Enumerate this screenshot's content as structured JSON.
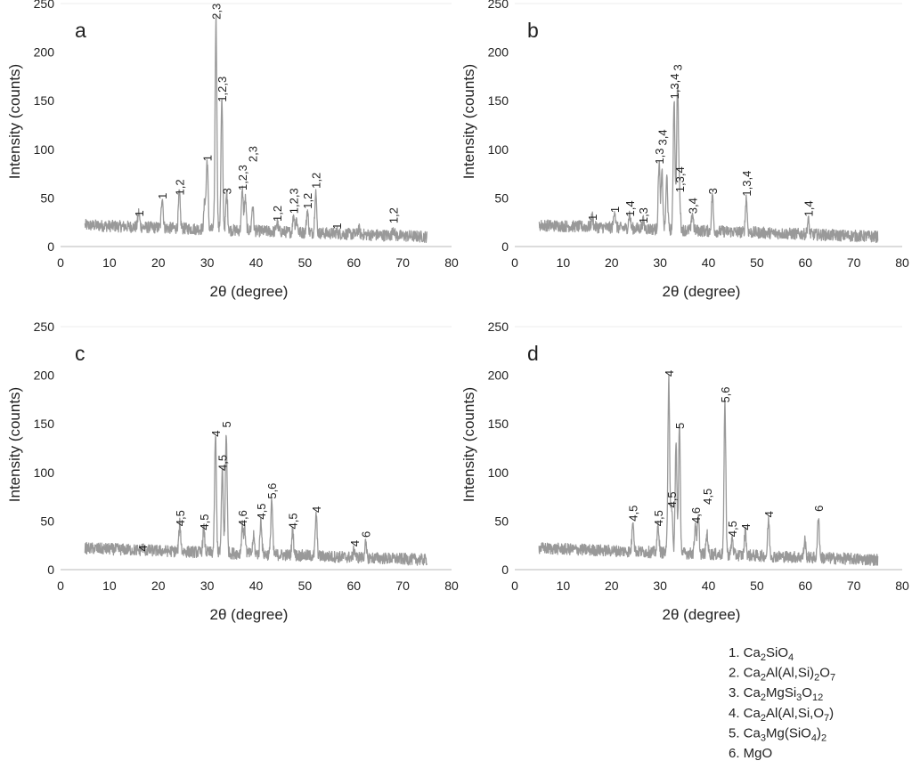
{
  "chart_data": [
    {
      "type": "line",
      "panel_label": "a",
      "xlabel": "2θ (degree)",
      "ylabel": "Intensity (counts)",
      "xlim": [
        0,
        80
      ],
      "ylim": [
        0,
        250
      ],
      "xticks": [
        0,
        10,
        20,
        30,
        40,
        50,
        60,
        70,
        80
      ],
      "yticks": [
        0,
        50,
        100,
        150,
        200,
        250
      ],
      "x_range_measured": [
        5,
        75
      ],
      "color": "#999999",
      "peaks": [
        {
          "x": 16.0,
          "y": 27,
          "label": "1"
        },
        {
          "x": 20.8,
          "y": 45,
          "label": "1"
        },
        {
          "x": 24.3,
          "y": 49,
          "label": "1,2"
        },
        {
          "x": 29.5,
          "y": 40,
          "label": ""
        },
        {
          "x": 30.0,
          "y": 84,
          "label": "1"
        },
        {
          "x": 31.8,
          "y": 230,
          "label": "2,3"
        },
        {
          "x": 33.0,
          "y": 145,
          "label": "1,2,3"
        },
        {
          "x": 34.0,
          "y": 50,
          "label": "3"
        },
        {
          "x": 37.2,
          "y": 54,
          "label": "1,2,3"
        },
        {
          "x": 37.8,
          "y": 45,
          "label": ""
        },
        {
          "x": 39.3,
          "y": 38,
          "label": "2,3"
        },
        {
          "x": 44.3,
          "y": 22,
          "label": "1,2"
        },
        {
          "x": 47.7,
          "y": 30,
          "label": "1,2,3"
        },
        {
          "x": 48.3,
          "y": 25,
          "label": ""
        },
        {
          "x": 50.5,
          "y": 35,
          "label": "1,2"
        },
        {
          "x": 52.2,
          "y": 56,
          "label": "1,2"
        },
        {
          "x": 56.5,
          "y": 14,
          "label": "1"
        },
        {
          "x": 61.0,
          "y": 18,
          "label": ""
        },
        {
          "x": 68.1,
          "y": 20,
          "label": "1,2"
        }
      ]
    },
    {
      "type": "line",
      "panel_label": "b",
      "xlabel": "2θ (degree)",
      "ylabel": "Intensity (counts)",
      "xlim": [
        0,
        80
      ],
      "ylim": [
        0,
        250
      ],
      "xticks": [
        0,
        10,
        20,
        30,
        40,
        50,
        60,
        70,
        80
      ],
      "yticks": [
        0,
        50,
        100,
        150,
        200,
        250
      ],
      "x_range_measured": [
        5,
        75
      ],
      "color": "#999999",
      "peaks": [
        {
          "x": 16.0,
          "y": 23,
          "label": "1"
        },
        {
          "x": 20.6,
          "y": 31,
          "label": "1"
        },
        {
          "x": 23.7,
          "y": 27,
          "label": "1,4"
        },
        {
          "x": 26.5,
          "y": 20,
          "label": "1,3"
        },
        {
          "x": 29.8,
          "y": 81,
          "label": "1,3"
        },
        {
          "x": 30.4,
          "y": 70,
          "label": "3,4"
        },
        {
          "x": 31.4,
          "y": 66,
          "label": ""
        },
        {
          "x": 32.9,
          "y": 148,
          "label": "1,3,4"
        },
        {
          "x": 33.6,
          "y": 159,
          "label": "3"
        },
        {
          "x": 34.0,
          "y": 52,
          "label": "1,3,4"
        },
        {
          "x": 36.7,
          "y": 30,
          "label": "3,4"
        },
        {
          "x": 40.8,
          "y": 50,
          "label": "3"
        },
        {
          "x": 47.8,
          "y": 48,
          "label": "1,3,4"
        },
        {
          "x": 60.6,
          "y": 27,
          "label": "1,4"
        }
      ]
    },
    {
      "type": "line",
      "panel_label": "c",
      "xlabel": "2θ (degree)",
      "ylabel": "Intensity (counts)",
      "xlim": [
        0,
        80
      ],
      "ylim": [
        0,
        250
      ],
      "xticks": [
        0,
        10,
        20,
        30,
        40,
        50,
        60,
        70,
        80
      ],
      "yticks": [
        0,
        50,
        100,
        150,
        200,
        250
      ],
      "x_range_measured": [
        5,
        75
      ],
      "color": "#999999",
      "peaks": [
        {
          "x": 16.8,
          "y": 15,
          "label": "4"
        },
        {
          "x": 24.4,
          "y": 41,
          "label": "4,5"
        },
        {
          "x": 29.3,
          "y": 37,
          "label": "4,5"
        },
        {
          "x": 31.7,
          "y": 133,
          "label": "4"
        },
        {
          "x": 33.1,
          "y": 98,
          "label": "4,5"
        },
        {
          "x": 33.9,
          "y": 136,
          "label": "5"
        },
        {
          "x": 37.2,
          "y": 41,
          "label": "4,6"
        },
        {
          "x": 37.7,
          "y": 36,
          "label": ""
        },
        {
          "x": 39.5,
          "y": 30,
          "label": ""
        },
        {
          "x": 41.0,
          "y": 48,
          "label": "4,5"
        },
        {
          "x": 43.2,
          "y": 69,
          "label": "5,6"
        },
        {
          "x": 47.5,
          "y": 38,
          "label": "4,5"
        },
        {
          "x": 52.3,
          "y": 55,
          "label": "4"
        },
        {
          "x": 60.1,
          "y": 20,
          "label": "4"
        },
        {
          "x": 62.4,
          "y": 26,
          "label": "6"
        }
      ]
    },
    {
      "type": "line",
      "panel_label": "d",
      "xlabel": "2θ (degree)",
      "ylabel": "Intensity (counts)",
      "xlim": [
        0,
        80
      ],
      "ylim": [
        0,
        250
      ],
      "xticks": [
        0,
        10,
        20,
        30,
        40,
        50,
        60,
        70,
        80
      ],
      "yticks": [
        0,
        50,
        100,
        150,
        200,
        250
      ],
      "x_range_measured": [
        5,
        75
      ],
      "color": "#999999",
      "peaks": [
        {
          "x": 24.4,
          "y": 46,
          "label": "4,5"
        },
        {
          "x": 29.6,
          "y": 41,
          "label": "4,5"
        },
        {
          "x": 31.8,
          "y": 195,
          "label": "4"
        },
        {
          "x": 32.4,
          "y": 60,
          "label": "4,5"
        },
        {
          "x": 33.3,
          "y": 124,
          "label": ""
        },
        {
          "x": 34.0,
          "y": 141,
          "label": "5"
        },
        {
          "x": 37.3,
          "y": 44,
          "label": "4,6"
        },
        {
          "x": 37.9,
          "y": 50,
          "label": ""
        },
        {
          "x": 39.7,
          "y": 34,
          "label": "4,5"
        },
        {
          "x": 43.4,
          "y": 168,
          "label": "5,6"
        },
        {
          "x": 44.9,
          "y": 30,
          "label": "4,5"
        },
        {
          "x": 47.6,
          "y": 37,
          "label": "4"
        },
        {
          "x": 52.4,
          "y": 50,
          "label": "4"
        },
        {
          "x": 59.9,
          "y": 30,
          "label": ""
        },
        {
          "x": 62.7,
          "y": 56,
          "label": "6"
        }
      ]
    }
  ],
  "legend": [
    [
      {
        "t": "1. Ca"
      },
      {
        "s": "2"
      },
      {
        "t": "SiO"
      },
      {
        "s": "4"
      }
    ],
    [
      {
        "t": "2. Ca"
      },
      {
        "s": "2"
      },
      {
        "t": "Al(Al,Si)"
      },
      {
        "s": "2"
      },
      {
        "t": "O"
      },
      {
        "s": "7"
      }
    ],
    [
      {
        "t": "3. Ca"
      },
      {
        "s": "2"
      },
      {
        "t": "MgSi"
      },
      {
        "s": "3"
      },
      {
        "t": "O"
      },
      {
        "s": "12"
      }
    ],
    [
      {
        "t": "4. Ca"
      },
      {
        "s": "2"
      },
      {
        "t": "Al(Al,Si,O"
      },
      {
        "s": "7"
      },
      {
        "t": ")"
      }
    ],
    [
      {
        "t": "5. Ca"
      },
      {
        "s": "3"
      },
      {
        "t": "Mg(SiO"
      },
      {
        "s": "4"
      },
      {
        "t": ")"
      },
      {
        "s": "2"
      }
    ],
    [
      {
        "t": "6. MgO"
      }
    ]
  ]
}
